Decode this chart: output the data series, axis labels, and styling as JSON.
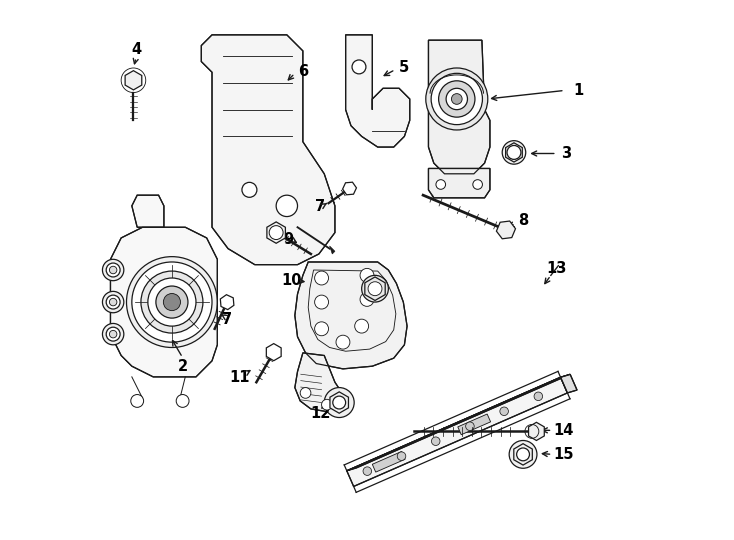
{
  "bg_color": "#ffffff",
  "line_color": "#1a1a1a",
  "lw": 0.9,
  "fig_width": 7.34,
  "fig_height": 5.4,
  "dpi": 100,
  "label_fs": 10.5,
  "labels": {
    "1": [
      0.895,
      0.835,
      0.81,
      0.83
    ],
    "2": [
      0.155,
      0.33,
      0.148,
      0.35
    ],
    "3": [
      0.895,
      0.715,
      0.845,
      0.72
    ],
    "4": [
      0.068,
      0.915,
      0.063,
      0.895
    ],
    "5": [
      0.565,
      0.875,
      0.53,
      0.85
    ],
    "6": [
      0.385,
      0.87,
      0.37,
      0.845
    ],
    "7a": [
      0.235,
      0.415,
      0.215,
      0.425
    ],
    "7b": [
      0.415,
      0.62,
      0.425,
      0.63
    ],
    "8": [
      0.79,
      0.59,
      0.765,
      0.58
    ],
    "9": [
      0.36,
      0.555,
      0.385,
      0.545
    ],
    "10": [
      0.365,
      0.48,
      0.395,
      0.475
    ],
    "11": [
      0.268,
      0.3,
      0.288,
      0.318
    ],
    "12": [
      0.42,
      0.235,
      0.445,
      0.255
    ],
    "13": [
      0.855,
      0.5,
      0.838,
      0.478
    ],
    "14": [
      0.865,
      0.2,
      0.84,
      0.2
    ],
    "15": [
      0.865,
      0.155,
      0.838,
      0.158
    ]
  }
}
